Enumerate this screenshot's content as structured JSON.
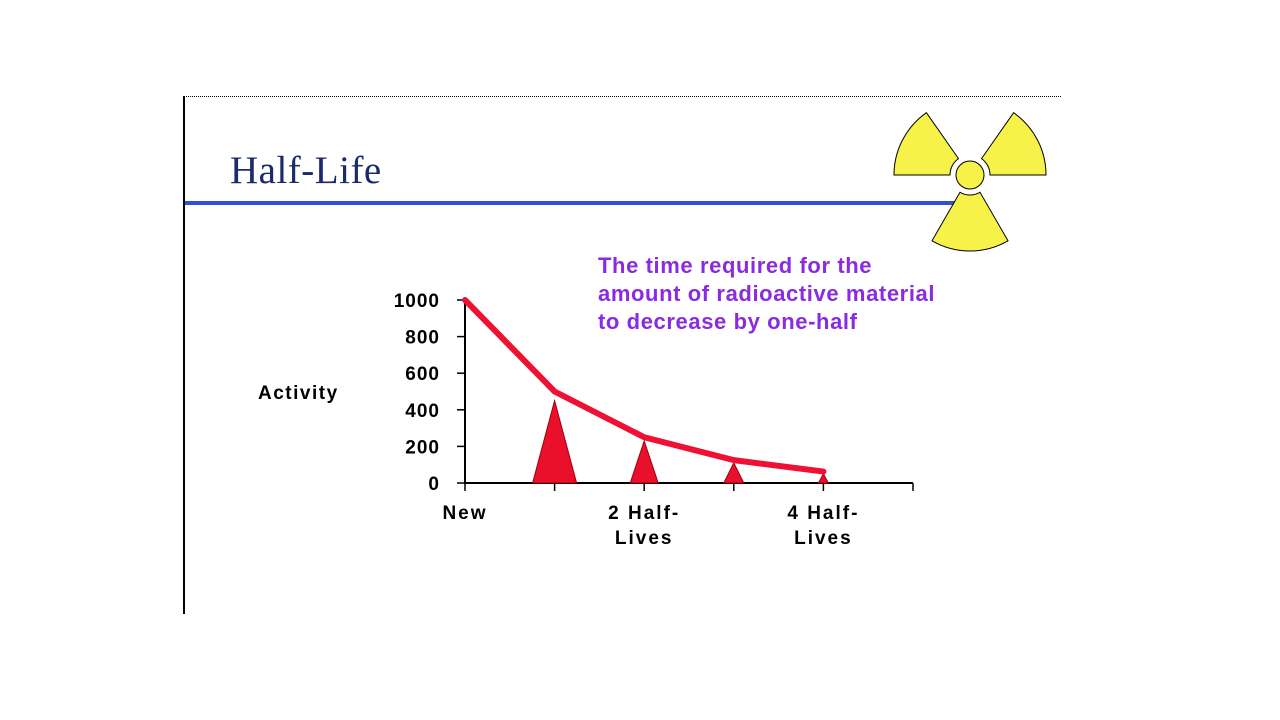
{
  "slide": {
    "title": "Half-Life",
    "definition_lines": [
      "The time required for the",
      "amount of radioactive material",
      "to decrease by one-half"
    ]
  },
  "colors": {
    "title": "#1b2a6b",
    "rule": "#2f4fd4",
    "definition": "#8a2be2",
    "curve": "#ee1133",
    "spike": "#e8102a",
    "logo": "#f6f24a"
  },
  "icons": {
    "logo": "radiation-trefoil-icon"
  },
  "chart_data": {
    "type": "line",
    "ylabel": "Activity",
    "xlabel": "",
    "ylim": [
      0,
      1000
    ],
    "yticks": [
      0,
      200,
      400,
      600,
      800,
      1000
    ],
    "ytick_labels": [
      "0",
      "200",
      "400",
      "600",
      "800",
      "1000"
    ],
    "xlim": [
      0,
      5
    ],
    "xtick_positions": [
      0,
      1,
      2,
      3,
      4,
      5
    ],
    "xtick_labels": [
      {
        "x": 0,
        "lines": [
          "New"
        ]
      },
      {
        "x": 2,
        "lines": [
          "2 Half-",
          "Lives"
        ]
      },
      {
        "x": 4,
        "lines": [
          "4 Half-",
          "Lives"
        ]
      }
    ],
    "series": [
      {
        "x": [
          0,
          1,
          2,
          3,
          4
        ],
        "values": [
          1000,
          500,
          250,
          125,
          62.5
        ]
      }
    ],
    "spikes": [
      {
        "x": 1,
        "value": 450
      },
      {
        "x": 2,
        "value": 230
      },
      {
        "x": 3,
        "value": 110
      },
      {
        "x": 4,
        "value": 50
      }
    ],
    "grid": false,
    "legend": "none"
  }
}
